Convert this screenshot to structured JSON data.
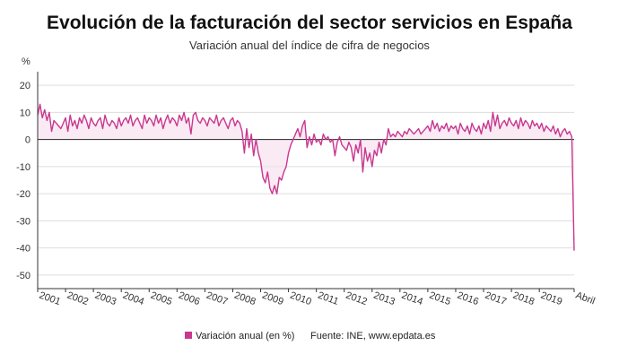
{
  "title": "Evolución de la facturación del sector servicios en España",
  "subtitle": "Variación anual del índice de cifra de negocios",
  "source": "Fuente: INE, www.epdata.es",
  "colors": {
    "series": "#c8388f",
    "fill": "#f7dcec",
    "grid": "#dddddd",
    "axis": "#333333"
  },
  "chart_data": {
    "type": "line",
    "title": "Evolución de la facturación del sector servicios en España",
    "subtitle": "Variación anual del índice de cifra de negocios",
    "ylabel": "%",
    "ylim": [
      -55,
      25
    ],
    "yticks": [
      20,
      10,
      0,
      -10,
      -20,
      -30,
      -40,
      -50
    ],
    "xtick_labels": [
      "2001",
      "2002",
      "2003",
      "2004",
      "2005",
      "2006",
      "2007",
      "2008",
      "2009",
      "2010",
      "2011",
      "2012",
      "2013",
      "2014",
      "2015",
      "2016",
      "2017",
      "2018",
      "2019",
      "Abril"
    ],
    "grid": true,
    "legend_position": "bottom",
    "series": [
      {
        "name": "Variación anual (en %)",
        "color": "#c8388f",
        "start": "2001-01",
        "end": "2020-04",
        "frequency": "monthly",
        "values": [
          9,
          13,
          8,
          11,
          7,
          10,
          3,
          7,
          6,
          5,
          4,
          6,
          8,
          3,
          9,
          5,
          7,
          4,
          8,
          6,
          9,
          7,
          4,
          8,
          6,
          5,
          7,
          8,
          4,
          9,
          6,
          5,
          7,
          6,
          4,
          8,
          5,
          7,
          8,
          6,
          9,
          5,
          7,
          8,
          6,
          4,
          9,
          6,
          8,
          7,
          5,
          9,
          6,
          8,
          4,
          7,
          9,
          6,
          8,
          7,
          5,
          9,
          7,
          10,
          6,
          8,
          2,
          9,
          10,
          7,
          6,
          8,
          7,
          5,
          8,
          7,
          6,
          9,
          5,
          7,
          8,
          6,
          4,
          7,
          8,
          5,
          7,
          6,
          3,
          -5,
          4,
          -3,
          2,
          -6,
          0,
          -5,
          -8,
          -14,
          -16,
          -12,
          -18,
          -20,
          -17,
          -20,
          -14,
          -15,
          -12,
          -10,
          -5,
          -2,
          0,
          2,
          4,
          1,
          5,
          7,
          -3,
          1,
          -2,
          2,
          -1,
          0,
          -2,
          2,
          0,
          1,
          -1,
          0,
          -6,
          -1,
          1,
          -2,
          -3,
          -4,
          -1,
          -3,
          -8,
          -2,
          -5,
          0,
          -12,
          -3,
          -8,
          -5,
          -10,
          -4,
          -6,
          -1,
          -5,
          0,
          -2,
          4,
          1,
          2,
          1,
          3,
          2,
          1,
          3,
          2,
          4,
          3,
          2,
          3,
          4,
          2,
          3,
          4,
          5,
          3,
          7,
          4,
          6,
          3,
          5,
          4,
          6,
          3,
          5,
          4,
          5,
          2,
          6,
          4,
          3,
          5,
          2,
          6,
          4,
          3,
          5,
          2,
          6,
          4,
          7,
          3,
          10,
          5,
          9,
          4,
          6,
          7,
          5,
          8,
          6,
          5,
          7,
          4,
          8,
          5,
          7,
          6,
          4,
          7,
          5,
          6,
          4,
          6,
          3,
          5,
          4,
          3,
          5,
          2,
          4,
          1,
          3,
          4,
          2,
          3,
          1,
          -41
        ]
      }
    ]
  }
}
